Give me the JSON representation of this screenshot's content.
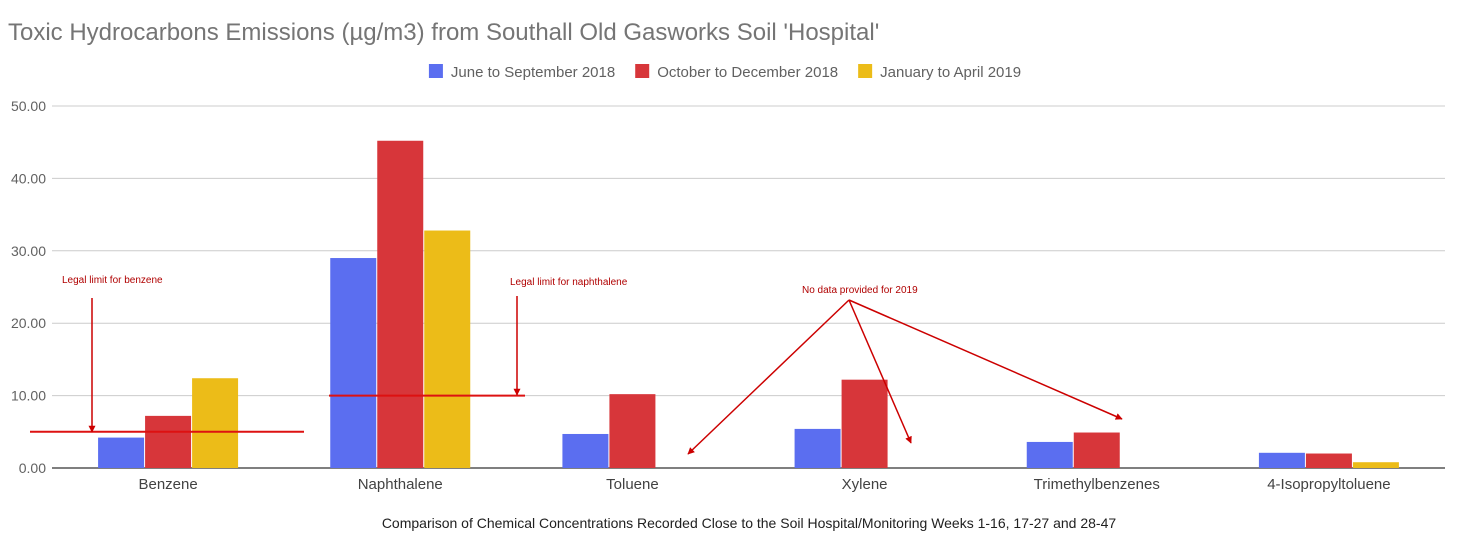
{
  "chart_data": {
    "type": "bar",
    "title": "Toxic Hydrocarbons Emissions (µg/m3) from Southall Old Gasworks Soil 'Hospital'",
    "xlabel": "Comparison of Chemical Concentrations Recorded Close to the Soil Hospital/Monitoring Weeks 1-16, 17-27 and 28-47",
    "ylabel": "",
    "ylim": [
      0,
      50
    ],
    "yticks": [
      "0.00",
      "10.00",
      "20.00",
      "30.00",
      "40.00",
      "50.00"
    ],
    "grid": true,
    "legend_position": "top",
    "categories": [
      "Benzene",
      "Naphthalene",
      "Toluene",
      "Xylene",
      "Trimethylbenzenes",
      "4-Isopropyltoluene"
    ],
    "series": [
      {
        "name": "June to September 2018",
        "color": "#5b6ef0",
        "values": [
          4.2,
          29.0,
          4.7,
          5.4,
          3.6,
          2.1
        ]
      },
      {
        "name": "October to December 2018",
        "color": "#d7363a",
        "values": [
          7.2,
          45.2,
          10.2,
          12.2,
          4.9,
          2.0
        ]
      },
      {
        "name": "January to April 2019",
        "color": "#ecbc18",
        "values": [
          12.4,
          32.8,
          null,
          null,
          null,
          0.8
        ]
      }
    ],
    "limits": [
      {
        "name": "benzene",
        "value": 5.0
      },
      {
        "name": "naphthalene",
        "value": 10.0
      }
    ],
    "annotations": {
      "benzene_limit": "Legal limit for benzene",
      "naphthalene_limit": "Legal limit for naphthalene",
      "no_data": "No data provided for 2019"
    }
  }
}
